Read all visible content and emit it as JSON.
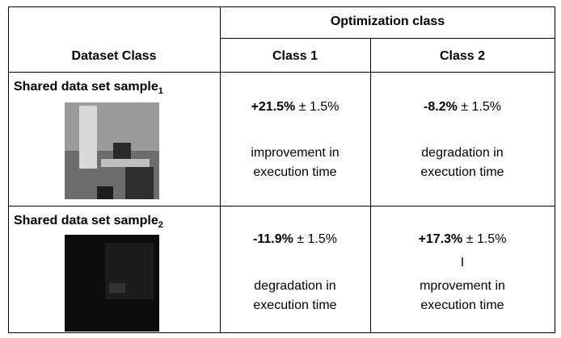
{
  "table": {
    "header": {
      "group": "Optimization class",
      "columns": [
        "Dataset Class",
        "Class 1",
        "Class 2"
      ]
    },
    "rows": [
      {
        "label": "Shared data set sample",
        "subscript": "1",
        "cells": [
          {
            "value": "+21.5%",
            "error": "± 1.5%",
            "lines": [
              "improvement in",
              "execution time"
            ]
          },
          {
            "value": "-8.2%",
            "error": "± 1.5%",
            "lines": [
              "degradation in",
              "execution time"
            ]
          }
        ]
      },
      {
        "label": "Shared data set sample",
        "subscript": "2",
        "cells": [
          {
            "value": "-11.9%",
            "error": "± 1.5%",
            "lines": [
              "degradation in",
              "execution time"
            ]
          },
          {
            "value": "+17.3%",
            "error": "± 1.5%",
            "lines": [
              "I",
              "mprovement in",
              "execution time"
            ]
          }
        ]
      }
    ]
  }
}
